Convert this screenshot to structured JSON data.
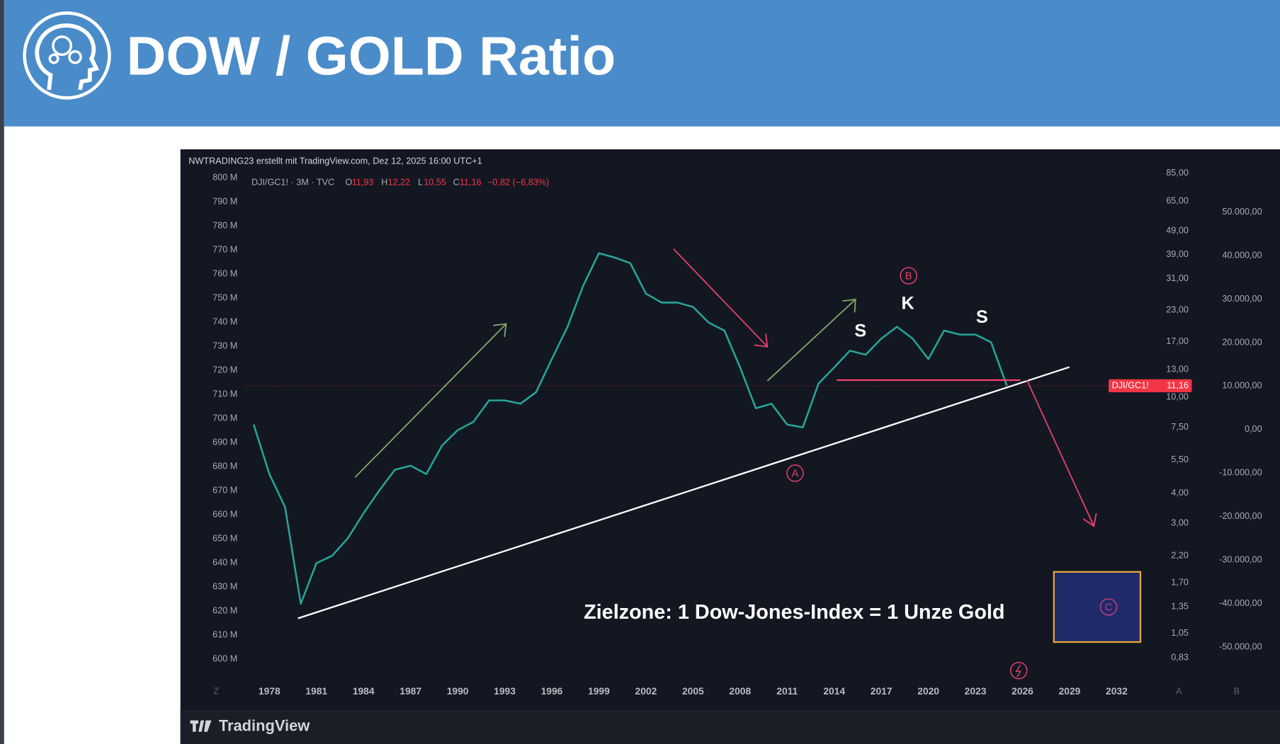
{
  "header": {
    "title": "DOW / GOLD Ratio"
  },
  "chart_data": {
    "type": "line",
    "source_line": "NWTRADING23 erstellt mit TradingView.com, Dez 12, 2025 16:00 UTC+1",
    "symbol": "DJI/GC1! · 3M · TVC",
    "ohlc": [
      [
        "O",
        "11,93"
      ],
      [
        "H",
        "12,22"
      ],
      [
        "L",
        "10,55"
      ],
      [
        "C",
        "11,16"
      ]
    ],
    "change": "−0,82 (−6,83%)",
    "x": [
      1977,
      1978,
      1979,
      1980,
      1981,
      1982,
      1983,
      1984,
      1985,
      1986,
      1987,
      1988,
      1989,
      1990,
      1991,
      1992,
      1993,
      1994,
      1995,
      1996,
      1997,
      1998,
      1999,
      2000,
      2001,
      2002,
      2003,
      2004,
      2005,
      2006,
      2007,
      2008,
      2009,
      2010,
      2011,
      2012,
      2013,
      2014,
      2015,
      2016,
      2017,
      2018,
      2019,
      2020,
      2021,
      2022,
      2023,
      2024,
      2025
    ],
    "series": [
      {
        "name": "DJI/GC1!",
        "color": "#26a69a",
        "values": [
          7.7,
          4.8,
          3.5,
          1.39,
          2.05,
          2.2,
          2.6,
          3.3,
          4.1,
          5.0,
          5.2,
          4.8,
          6.3,
          7.3,
          7.9,
          9.7,
          9.7,
          9.4,
          10.5,
          14.4,
          19.6,
          29,
          39.6,
          38,
          36,
          26.9,
          24.7,
          24.7,
          23.7,
          20.4,
          18.9,
          13.3,
          9.0,
          9.4,
          7.7,
          7.5,
          11.4,
          13.3,
          15.6,
          15.0,
          17.5,
          19.6,
          17.5,
          14.4,
          18.9,
          18.2,
          18.2,
          16.9,
          11.16
        ],
        "last_label": "11,16"
      }
    ],
    "xlim": [
      1976.44,
      2034.71
    ],
    "xticks": [
      1978,
      1981,
      1984,
      1987,
      1990,
      1993,
      1996,
      1999,
      2002,
      2005,
      2008,
      2011,
      2014,
      2017,
      2020,
      2023,
      2026,
      2029,
      2032
    ],
    "log_y": true,
    "ylim": [
      0.69,
      90
    ],
    "yticks": [
      {
        "value": 85,
        "label": "85,00"
      },
      {
        "value": 65,
        "label": "65,00"
      },
      {
        "value": 49,
        "label": "49,00"
      },
      {
        "value": 39,
        "label": "39,00"
      },
      {
        "value": 31,
        "label": "31,00"
      },
      {
        "value": 23,
        "label": "23,00"
      },
      {
        "value": 17,
        "label": "17,00"
      },
      {
        "value": 13,
        "label": "13,00"
      },
      {
        "value": 10,
        "label": "10,00"
      },
      {
        "value": 7.5,
        "label": "7,50"
      },
      {
        "value": 5.5,
        "label": "5,50"
      },
      {
        "value": 4,
        "label": "4,00"
      },
      {
        "value": 3,
        "label": "3,00"
      },
      {
        "value": 2.2,
        "label": "2,20"
      },
      {
        "value": 1.7,
        "label": "1,70"
      },
      {
        "value": 1.35,
        "label": "1,35"
      },
      {
        "value": 1.05,
        "label": "1,05"
      },
      {
        "value": 0.83,
        "label": "0,83"
      }
    ],
    "y2lim": [
      -56900,
      60300
    ],
    "y2ticks": [
      {
        "value": 50000,
        "label": "50.000,00"
      },
      {
        "value": 40000,
        "label": "40.000,00"
      },
      {
        "value": 30000,
        "label": "30.000,00"
      },
      {
        "value": 20000,
        "label": "20.000,00"
      },
      {
        "value": 10000,
        "label": "10.000,00"
      },
      {
        "value": 0,
        "label": "0,00"
      },
      {
        "value": -10000,
        "label": "-10.000,00"
      },
      {
        "value": -20000,
        "label": "-20.000,00"
      },
      {
        "value": -30000,
        "label": "-30.000,00"
      },
      {
        "value": -40000,
        "label": "-40.000,00"
      },
      {
        "value": -50000,
        "label": "-50.000,00"
      }
    ],
    "left_lim": [
      592.5,
      804.4
    ],
    "left_ticks": [
      {
        "value": 800,
        "label": "800 M"
      },
      {
        "value": 790,
        "label": "790 M"
      },
      {
        "value": 780,
        "label": "780 M"
      },
      {
        "value": 770,
        "label": "770 M"
      },
      {
        "value": 760,
        "label": "760 M"
      },
      {
        "value": 750,
        "label": "750 M"
      },
      {
        "value": 740,
        "label": "740 M"
      },
      {
        "value": 730,
        "label": "730 M"
      },
      {
        "value": 720,
        "label": "720 M"
      },
      {
        "value": 710,
        "label": "710 M"
      },
      {
        "value": 700,
        "label": "700 M"
      },
      {
        "value": 690,
        "label": "690 M"
      },
      {
        "value": 680,
        "label": "680 M"
      },
      {
        "value": 670,
        "label": "670 M"
      },
      {
        "value": 660,
        "label": "660 M"
      },
      {
        "value": 650,
        "label": "650 M"
      },
      {
        "value": 640,
        "label": "640 M"
      },
      {
        "value": 630,
        "label": "630 M"
      },
      {
        "value": 620,
        "label": "620 M"
      },
      {
        "value": 610,
        "label": "610 M"
      },
      {
        "value": 600,
        "label": "600 M"
      }
    ],
    "annotations": {
      "shoulder_left": "S",
      "head": "K",
      "shoulder_right": "S",
      "wave_a": "A",
      "wave_b": "B",
      "wave_c": "C",
      "target": "Zielzone: 1 Dow-Jones-Index = 1 Unze Gold"
    },
    "corner_labels": {
      "left": "Z",
      "mid": "A",
      "right": "B"
    },
    "brand": "TradingView"
  }
}
